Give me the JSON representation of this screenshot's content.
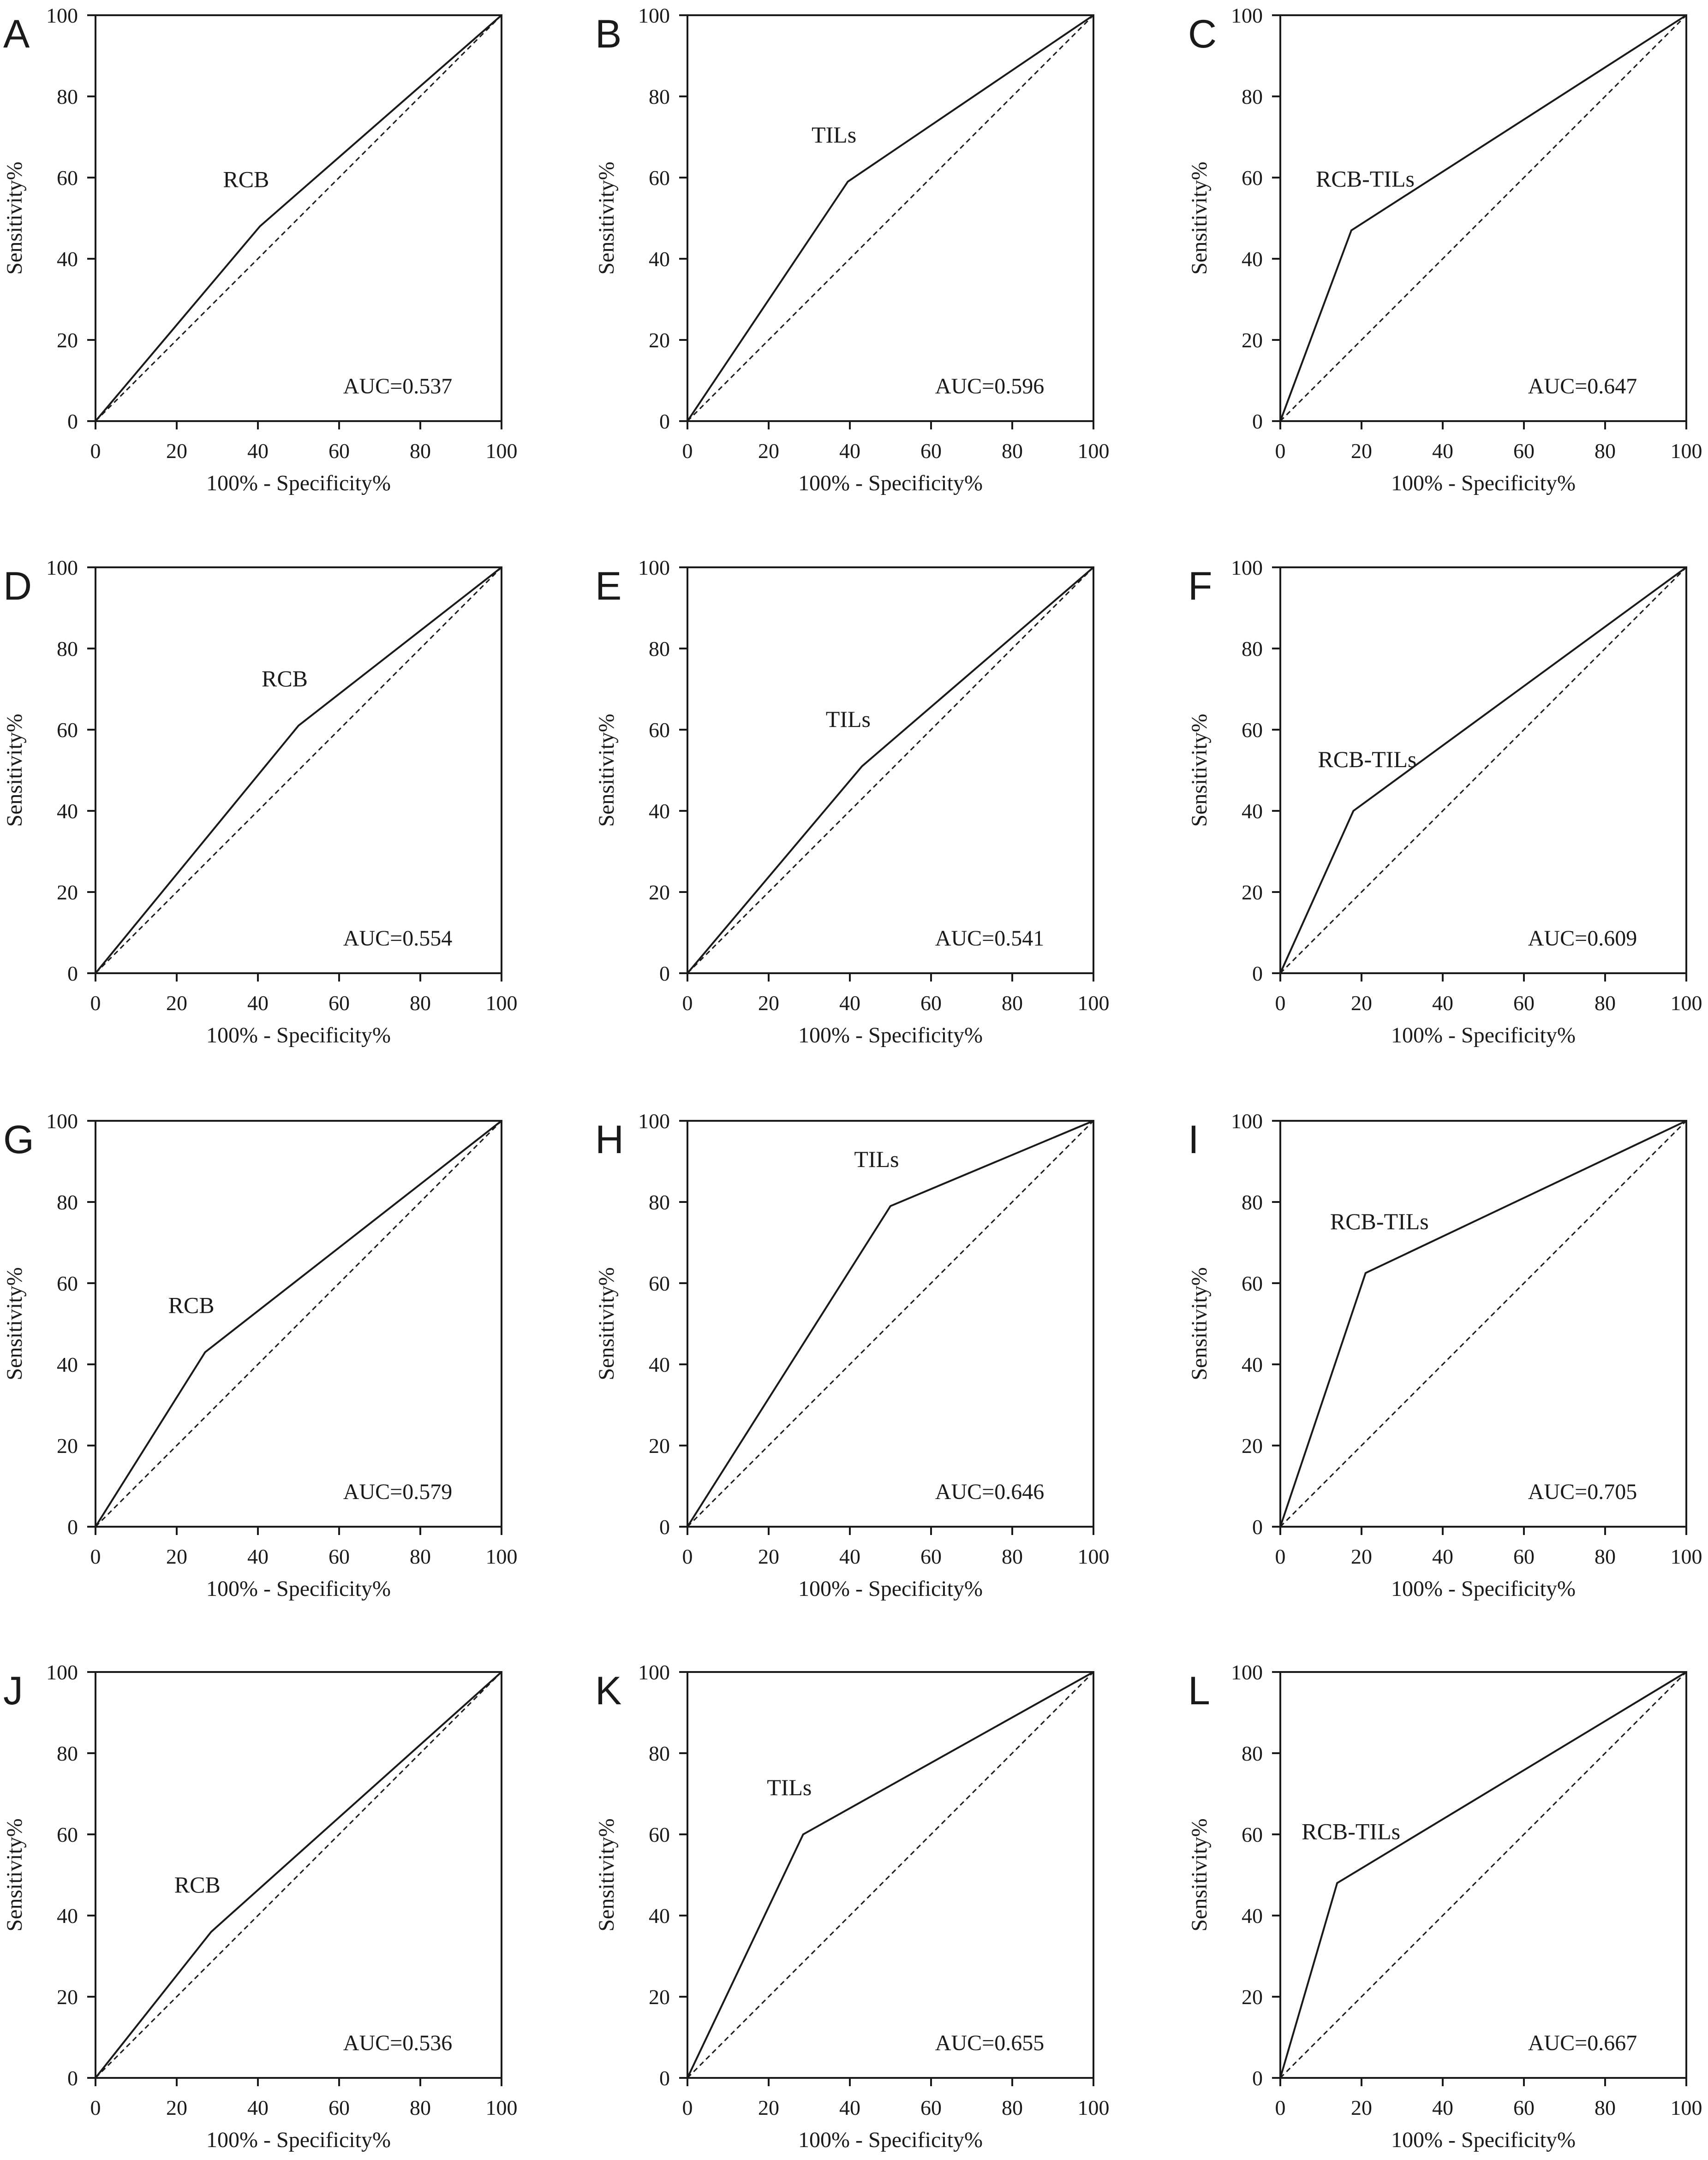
{
  "style": {
    "line_color": "#1a1a1a",
    "reference_line": "dashed diagonal",
    "background": "#ffffff"
  },
  "chart_data": [
    {
      "panel": "A",
      "type": "line",
      "series_label": "RCB",
      "annotation": "AUC=0.537",
      "xlabel": "100% - Specificity%",
      "ylabel": "Sensitivity%",
      "xlim": [
        0,
        100
      ],
      "ylim": [
        0,
        100
      ],
      "xticks": [
        0,
        20,
        40,
        60,
        80,
        100
      ],
      "yticks": [
        0,
        20,
        40,
        60,
        80,
        100
      ],
      "x": [
        0,
        40.5,
        100
      ],
      "y": [
        0,
        48,
        100
      ],
      "reference_line": [
        [
          0,
          0
        ],
        [
          100,
          100
        ]
      ]
    },
    {
      "panel": "B",
      "type": "line",
      "series_label": "TILs",
      "annotation": "AUC=0.596",
      "xlabel": "100% - Specificity%",
      "ylabel": "Sensitivity%",
      "xlim": [
        0,
        100
      ],
      "ylim": [
        0,
        100
      ],
      "xticks": [
        0,
        20,
        40,
        60,
        80,
        100
      ],
      "yticks": [
        0,
        20,
        40,
        60,
        80,
        100
      ],
      "x": [
        0,
        39.5,
        100
      ],
      "y": [
        0,
        59,
        100
      ],
      "reference_line": [
        [
          0,
          0
        ],
        [
          100,
          100
        ]
      ]
    },
    {
      "panel": "C",
      "type": "line",
      "series_label": "RCB-TILs",
      "annotation": "AUC=0.647",
      "xlabel": "100% - Specificity%",
      "ylabel": "Sensitivity%",
      "xlim": [
        0,
        100
      ],
      "ylim": [
        0,
        100
      ],
      "xticks": [
        0,
        20,
        40,
        60,
        80,
        100
      ],
      "yticks": [
        0,
        20,
        40,
        60,
        80,
        100
      ],
      "x": [
        0,
        17.5,
        100
      ],
      "y": [
        0,
        47,
        100
      ],
      "reference_line": [
        [
          0,
          0
        ],
        [
          100,
          100
        ]
      ]
    },
    {
      "panel": "D",
      "type": "line",
      "series_label": "RCB",
      "annotation": "AUC=0.554",
      "xlabel": "100% - Specificity%",
      "ylabel": "Sensitivity%",
      "xlim": [
        0,
        100
      ],
      "ylim": [
        0,
        100
      ],
      "xticks": [
        0,
        20,
        40,
        60,
        80,
        100
      ],
      "yticks": [
        0,
        20,
        40,
        60,
        80,
        100
      ],
      "x": [
        0,
        50,
        100
      ],
      "y": [
        0,
        61,
        100
      ],
      "reference_line": [
        [
          0,
          0
        ],
        [
          100,
          100
        ]
      ]
    },
    {
      "panel": "E",
      "type": "line",
      "series_label": "TILs",
      "annotation": "AUC=0.541",
      "xlabel": "100% - Specificity%",
      "ylabel": "Sensitivity%",
      "xlim": [
        0,
        100
      ],
      "ylim": [
        0,
        100
      ],
      "xticks": [
        0,
        20,
        40,
        60,
        80,
        100
      ],
      "yticks": [
        0,
        20,
        40,
        60,
        80,
        100
      ],
      "x": [
        0,
        43,
        100
      ],
      "y": [
        0,
        51,
        100
      ],
      "reference_line": [
        [
          0,
          0
        ],
        [
          100,
          100
        ]
      ]
    },
    {
      "panel": "F",
      "type": "line",
      "series_label": "RCB-TILs",
      "annotation": "AUC=0.609",
      "xlabel": "100% - Specificity%",
      "ylabel": "Sensitivity%",
      "xlim": [
        0,
        100
      ],
      "ylim": [
        0,
        100
      ],
      "xticks": [
        0,
        20,
        40,
        60,
        80,
        100
      ],
      "yticks": [
        0,
        20,
        40,
        60,
        80,
        100
      ],
      "x": [
        0,
        18,
        100
      ],
      "y": [
        0,
        40,
        100
      ],
      "reference_line": [
        [
          0,
          0
        ],
        [
          100,
          100
        ]
      ]
    },
    {
      "panel": "G",
      "type": "line",
      "series_label": "RCB",
      "annotation": "AUC=0.579",
      "xlabel": "100% - Specificity%",
      "ylabel": "Sensitivity%",
      "xlim": [
        0,
        100
      ],
      "ylim": [
        0,
        100
      ],
      "xticks": [
        0,
        20,
        40,
        60,
        80,
        100
      ],
      "yticks": [
        0,
        20,
        40,
        60,
        80,
        100
      ],
      "x": [
        0,
        27,
        100
      ],
      "y": [
        0,
        43,
        100
      ],
      "reference_line": [
        [
          0,
          0
        ],
        [
          100,
          100
        ]
      ]
    },
    {
      "panel": "H",
      "type": "line",
      "series_label": "TILs",
      "annotation": "AUC=0.646",
      "xlabel": "100% - Specificity%",
      "ylabel": "Sensitivity%",
      "xlim": [
        0,
        100
      ],
      "ylim": [
        0,
        100
      ],
      "xticks": [
        0,
        20,
        40,
        60,
        80,
        100
      ],
      "yticks": [
        0,
        20,
        40,
        60,
        80,
        100
      ],
      "x": [
        0,
        50,
        100
      ],
      "y": [
        0,
        79,
        100
      ],
      "reference_line": [
        [
          0,
          0
        ],
        [
          100,
          100
        ]
      ]
    },
    {
      "panel": "I",
      "type": "line",
      "series_label": "RCB-TILs",
      "annotation": "AUC=0.705",
      "xlabel": "100% - Specificity%",
      "ylabel": "Sensitivity%",
      "xlim": [
        0,
        100
      ],
      "ylim": [
        0,
        100
      ],
      "xticks": [
        0,
        20,
        40,
        60,
        80,
        100
      ],
      "yticks": [
        0,
        20,
        40,
        60,
        80,
        100
      ],
      "x": [
        0,
        21,
        100
      ],
      "y": [
        0,
        62.5,
        100
      ],
      "reference_line": [
        [
          0,
          0
        ],
        [
          100,
          100
        ]
      ]
    },
    {
      "panel": "J",
      "type": "line",
      "series_label": "RCB",
      "annotation": "AUC=0.536",
      "xlabel": "100% - Specificity%",
      "ylabel": "Sensitivity%",
      "xlim": [
        0,
        100
      ],
      "ylim": [
        0,
        100
      ],
      "xticks": [
        0,
        20,
        40,
        60,
        80,
        100
      ],
      "yticks": [
        0,
        20,
        40,
        60,
        80,
        100
      ],
      "x": [
        0,
        28.5,
        100
      ],
      "y": [
        0,
        36,
        100
      ],
      "reference_line": [
        [
          0,
          0
        ],
        [
          100,
          100
        ]
      ]
    },
    {
      "panel": "K",
      "type": "line",
      "series_label": "TILs",
      "annotation": "AUC=0.655",
      "xlabel": "100% - Specificity%",
      "ylabel": "Sensitivity%",
      "xlim": [
        0,
        100
      ],
      "ylim": [
        0,
        100
      ],
      "xticks": [
        0,
        20,
        40,
        60,
        80,
        100
      ],
      "yticks": [
        0,
        20,
        40,
        60,
        80,
        100
      ],
      "x": [
        0,
        28.5,
        100
      ],
      "y": [
        0,
        60,
        100
      ],
      "reference_line": [
        [
          0,
          0
        ],
        [
          100,
          100
        ]
      ]
    },
    {
      "panel": "L",
      "type": "line",
      "series_label": "RCB-TILs",
      "annotation": "AUC=0.667",
      "xlabel": "100% - Specificity%",
      "ylabel": "Sensitivity%",
      "xlim": [
        0,
        100
      ],
      "ylim": [
        0,
        100
      ],
      "xticks": [
        0,
        20,
        40,
        60,
        80,
        100
      ],
      "yticks": [
        0,
        20,
        40,
        60,
        80,
        100
      ],
      "x": [
        0,
        14,
        100
      ],
      "y": [
        0,
        48,
        100
      ],
      "reference_line": [
        [
          0,
          0
        ],
        [
          100,
          100
        ]
      ]
    }
  ]
}
